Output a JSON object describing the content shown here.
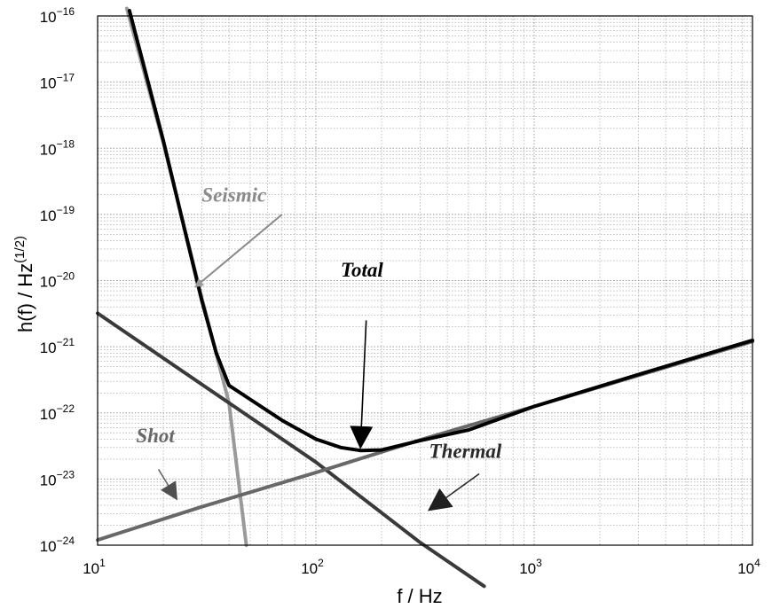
{
  "chart_data": {
    "type": "line",
    "xscale": "log",
    "yscale": "log",
    "xlim": [
      10,
      10000
    ],
    "ylim": [
      1e-24,
      1e-16
    ],
    "grid": true,
    "xlabel": "f / Hz",
    "ylabel": "h(f) / Hz",
    "ylabel_sup": "(1/2)",
    "x_ticks": [
      {
        "value": 10,
        "base": "10",
        "exp": "1"
      },
      {
        "value": 100,
        "base": "10",
        "exp": "2"
      },
      {
        "value": 1000,
        "base": "10",
        "exp": "3"
      },
      {
        "value": 10000,
        "base": "10",
        "exp": "4"
      }
    ],
    "y_ticks": [
      {
        "value": 1e-24,
        "base": "10",
        "exp": "−24"
      },
      {
        "value": 1e-23,
        "base": "10",
        "exp": "−23"
      },
      {
        "value": 1e-22,
        "base": "10",
        "exp": "−22"
      },
      {
        "value": 1e-21,
        "base": "10",
        "exp": "−21"
      },
      {
        "value": 1e-20,
        "base": "10",
        "exp": "−20"
      },
      {
        "value": 1e-19,
        "base": "10",
        "exp": "−19"
      },
      {
        "value": 1e-18,
        "base": "10",
        "exp": "−18"
      },
      {
        "value": 1e-17,
        "base": "10",
        "exp": "−17"
      },
      {
        "value": 1e-16,
        "base": "10",
        "exp": "−16"
      }
    ],
    "series": [
      {
        "key": "seismic",
        "color": "#9a9a9a",
        "width": 4,
        "x": [
          13.6,
          20,
          30,
          40,
          48
        ],
        "y": [
          1.3e-16,
          1.2e-18,
          5.5e-21,
          1.4e-22,
          1e-24
        ]
      },
      {
        "key": "thermal",
        "color": "#3a3a3a",
        "width": 4,
        "x": [
          10,
          30,
          100,
          300,
          590
        ],
        "y": [
          3.2e-21,
          2.7e-22,
          1.8e-23,
          1.1e-24,
          2.4e-25
        ]
      },
      {
        "key": "shot",
        "color": "#686868",
        "width": 4,
        "x": [
          10,
          30,
          100,
          300,
          1000,
          10000
        ],
        "y": [
          1.2e-24,
          3.8e-24,
          1.25e-23,
          3.9e-23,
          1.25e-22,
          1.2e-21
        ]
      },
      {
        "key": "total",
        "color": "#000000",
        "width": 4,
        "x": [
          14,
          20,
          25,
          30,
          35,
          40,
          50,
          70,
          100,
          130,
          160,
          200,
          300,
          500,
          1000,
          3000,
          10000
        ],
        "y": [
          1.2e-16,
          1.3e-18,
          6e-20,
          5e-21,
          8e-22,
          2.6e-22,
          1.6e-22,
          7.7e-23,
          4e-23,
          3e-23,
          2.7e-23,
          2.75e-23,
          3.8e-23,
          5.5e-23,
          1.25e-22,
          3.8e-22,
          1.25e-21
        ]
      }
    ],
    "annotations": [
      {
        "key": "seismic",
        "text": "Seismic",
        "color": "#8a8a8a",
        "text_x": 30,
        "text_y": 1.55e-19,
        "arrow_from": [
          70,
          1e-19
        ],
        "arrow_to": [
          28,
          8e-21
        ]
      },
      {
        "key": "total",
        "text": "Total",
        "color": "#000000",
        "text_x": 130,
        "text_y": 1.15e-20,
        "arrow_from": [
          170,
          2.5e-21
        ],
        "arrow_to": [
          160,
          3e-23
        ]
      },
      {
        "key": "shot",
        "text": "Shot",
        "color": "#686868",
        "text_x": 15,
        "text_y": 3.6e-23,
        "arrow_from": [
          19,
          1.4e-23
        ],
        "arrow_to": [
          23,
          5e-24
        ]
      },
      {
        "key": "thermal",
        "text": "Thermal",
        "color": "#2a2a2a",
        "text_x": 330,
        "text_y": 2.1e-23,
        "arrow_from": [
          560,
          1.2e-23
        ],
        "arrow_to": [
          330,
          3.4e-24
        ]
      }
    ]
  }
}
